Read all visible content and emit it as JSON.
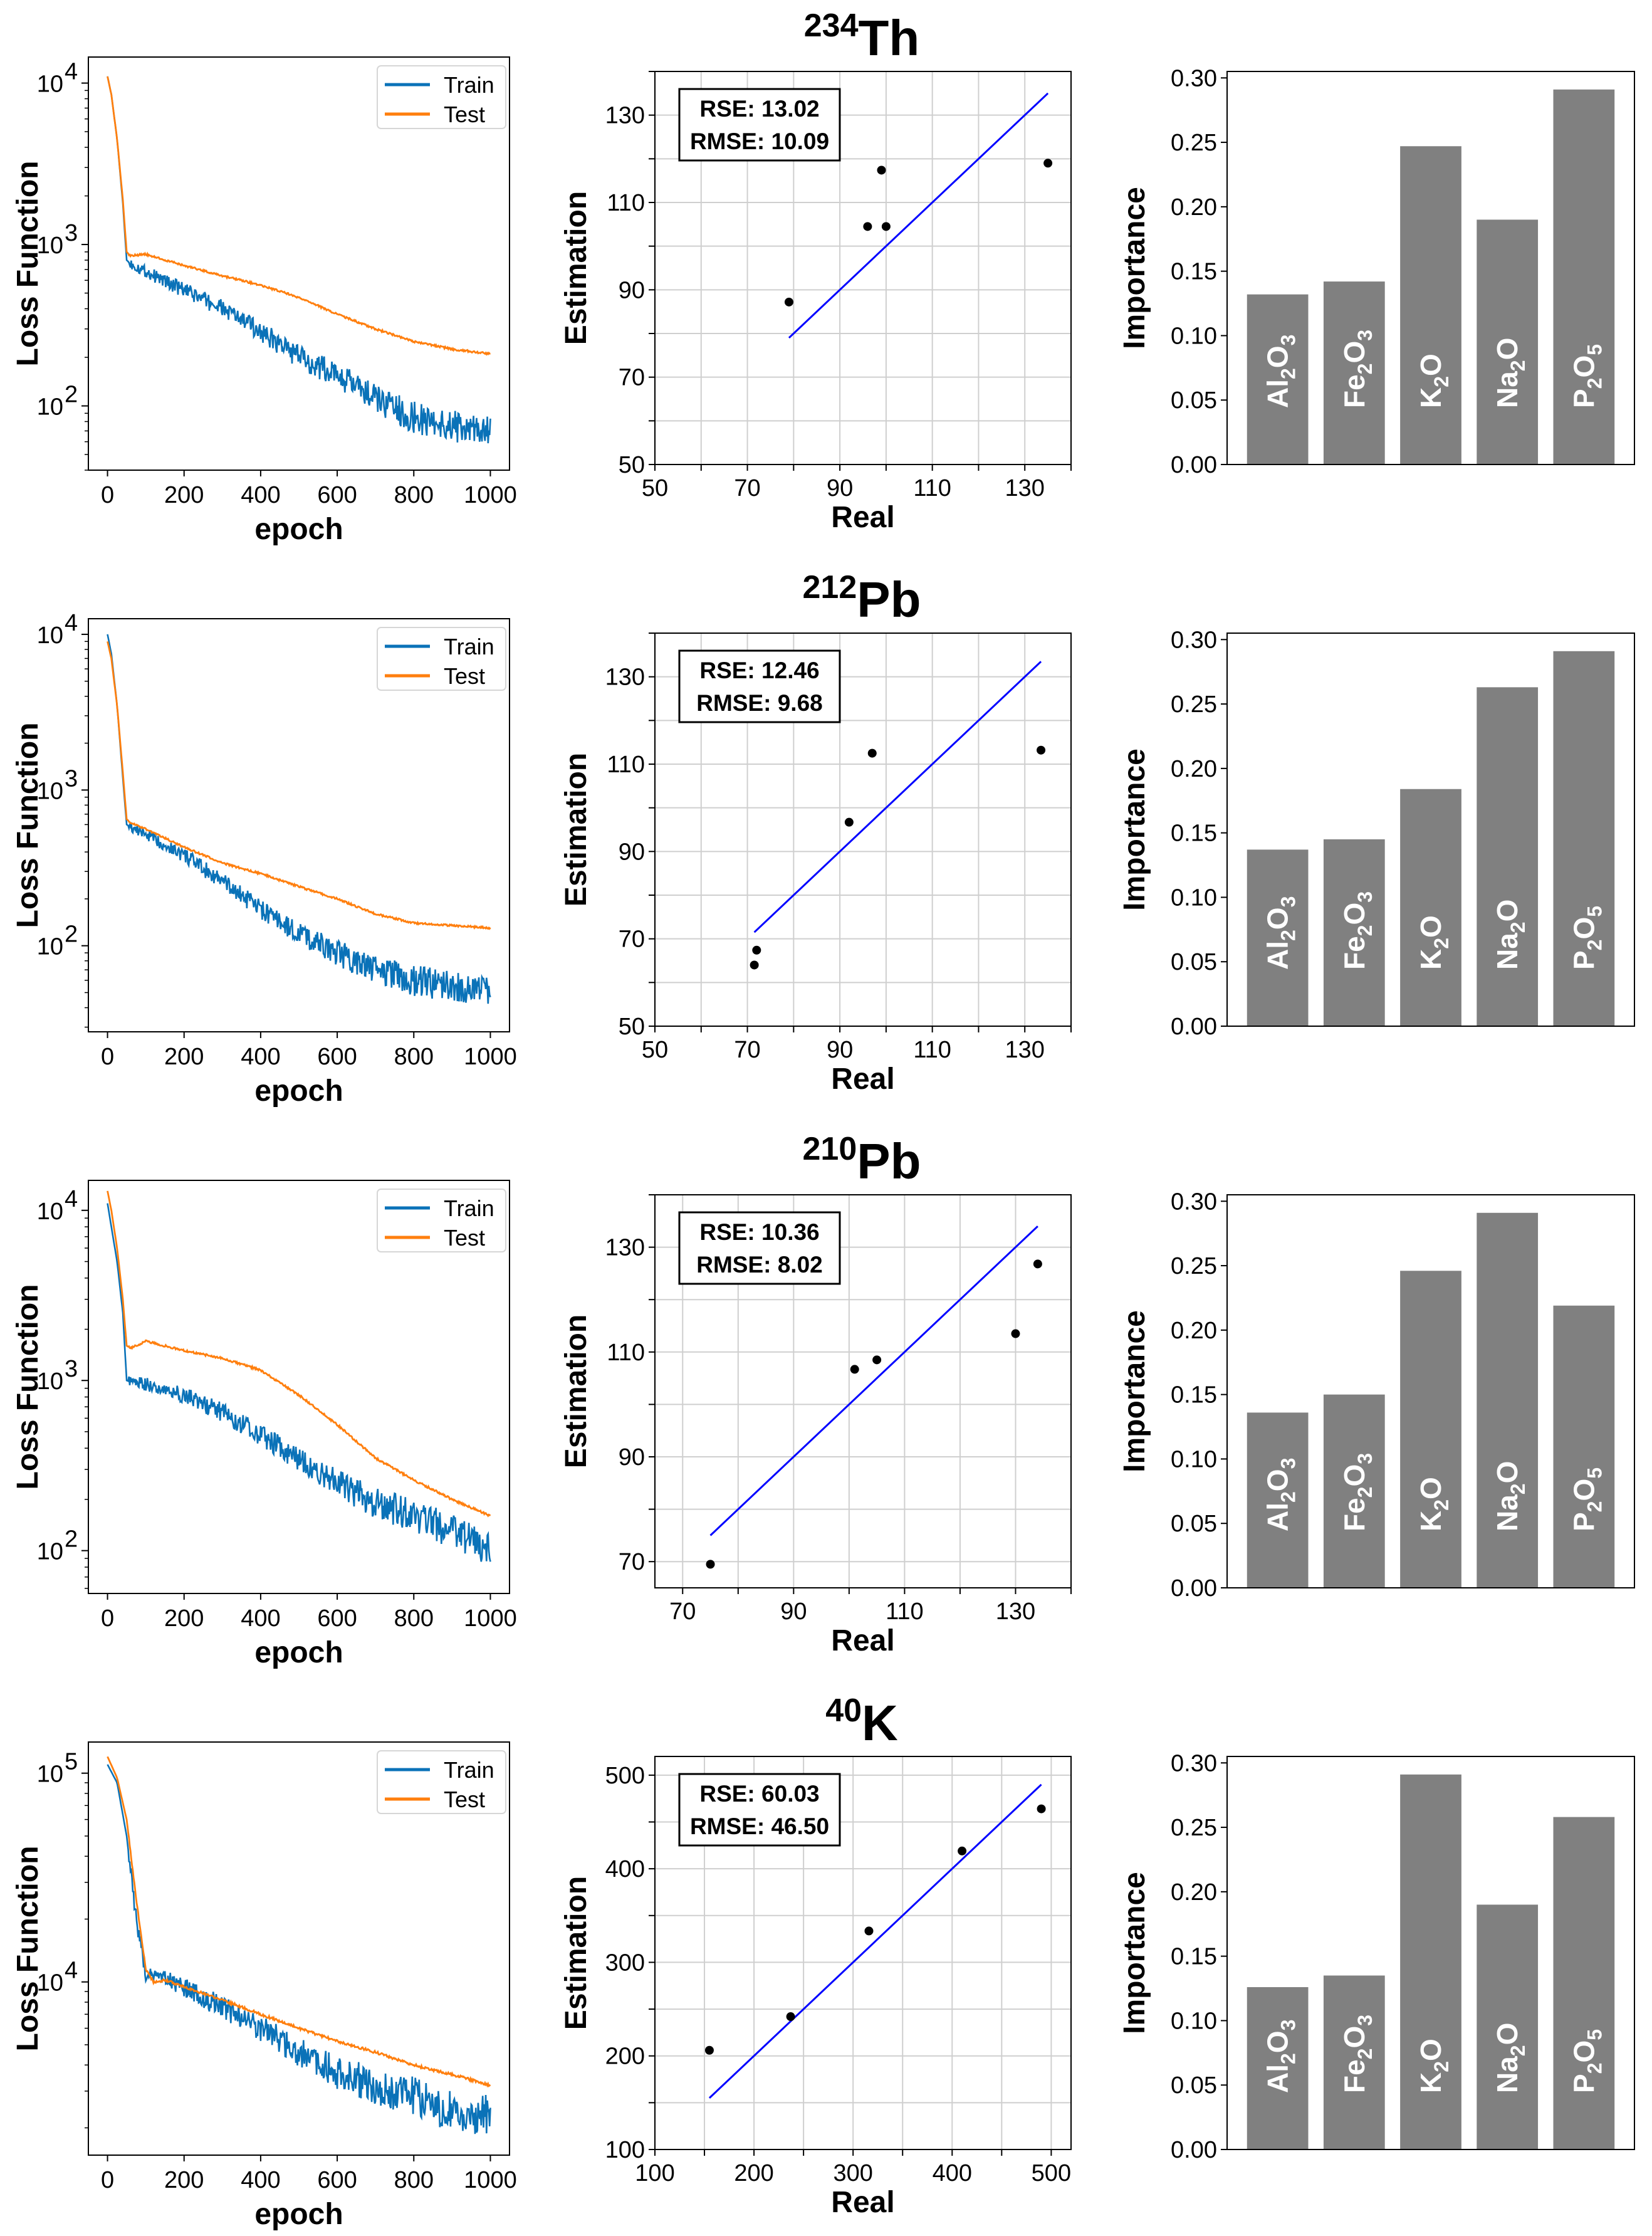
{
  "chart_data": {
    "rows": [
      {
        "title": {
          "mass": "234",
          "symbol": "Th"
        },
        "loss": {
          "type": "line",
          "xlabel": "epoch",
          "ylabel": "Loss Function",
          "yscale": "log",
          "xlim": [
            -50,
            1050
          ],
          "ylim": [
            40,
            14500
          ],
          "x_ticks": [
            0,
            200,
            400,
            600,
            800,
            1000
          ],
          "y_tick_base": "10",
          "y_tick_exponents": [
            2,
            3,
            4
          ],
          "legend": "top-right",
          "series": [
            {
              "name": "Train",
              "color": "#0a72b8",
              "x": [
                0,
                10,
                25,
                40,
                50,
                60,
                100,
                200,
                300,
                400,
                500,
                600,
                700,
                800,
                900,
                1000
              ],
              "y": [
                11000,
                8500,
                4500,
                1800,
                800,
                760,
                680,
                520,
                400,
                290,
                200,
                155,
                110,
                85,
                75,
                68
              ]
            },
            {
              "name": "Test",
              "color": "#ff7f0e",
              "x": [
                0,
                10,
                25,
                40,
                50,
                60,
                100,
                200,
                300,
                400,
                500,
                600,
                700,
                800,
                900,
                1000
              ],
              "y": [
                11000,
                8500,
                4500,
                1900,
                900,
                850,
                870,
                740,
                640,
                560,
                470,
                370,
                300,
                250,
                225,
                210
              ]
            }
          ]
        },
        "scatter": {
          "type": "scatter",
          "xlabel": "Real",
          "ylabel": "Estimation",
          "xlim": [
            50,
            140
          ],
          "ylim": [
            50,
            140
          ],
          "grid_step": 10,
          "x_ticks": [
            50,
            70,
            90,
            110,
            130
          ],
          "y_ticks": [
            50,
            70,
            90,
            110,
            130
          ],
          "metrics": [
            "RSE: 13.02",
            "RMSE: 10.09"
          ],
          "fit_line": {
            "x": [
              79,
              135
            ],
            "color": "#0000ff"
          },
          "points": [
            [
              79,
              87.2
            ],
            [
              96,
              104.5
            ],
            [
              100,
              104.5
            ],
            [
              99,
              117.4
            ],
            [
              135,
              119
            ]
          ]
        },
        "importance": {
          "type": "bar",
          "ylabel": "Importance",
          "ylim": [
            0,
            0.305
          ],
          "color": "#808080",
          "y_ticks": [
            "0.00",
            "0.05",
            "0.10",
            "0.15",
            "0.20",
            "0.25",
            "0.30"
          ],
          "categories": [
            "Al2O3",
            "Fe2O3",
            "K2O",
            "Na2O",
            "P2O5"
          ],
          "values": [
            0.132,
            0.142,
            0.247,
            0.19,
            0.291
          ]
        }
      },
      {
        "title": {
          "mass": "212",
          "symbol": "Pb"
        },
        "loss": {
          "type": "line",
          "xlabel": "epoch",
          "ylabel": "Loss Function",
          "yscale": "log",
          "xlim": [
            -50,
            1050
          ],
          "ylim": [
            28,
            12600
          ],
          "x_ticks": [
            0,
            200,
            400,
            600,
            800,
            1000
          ],
          "y_tick_base": "10",
          "y_tick_exponents": [
            2,
            3,
            4
          ],
          "legend": "top-right",
          "series": [
            {
              "name": "Train",
              "color": "#0a72b8",
              "x": [
                0,
                10,
                25,
                40,
                50,
                60,
                100,
                200,
                300,
                400,
                500,
                600,
                700,
                800,
                900,
                1000
              ],
              "y": [
                10000,
                7500,
                3500,
                1200,
                600,
                580,
                520,
                380,
                260,
                170,
                120,
                90,
                70,
                60,
                55,
                52
              ]
            },
            {
              "name": "Test",
              "color": "#ff7f0e",
              "x": [
                0,
                10,
                25,
                40,
                50,
                60,
                100,
                200,
                300,
                400,
                500,
                600,
                700,
                800,
                900,
                1000
              ],
              "y": [
                9000,
                7000,
                3500,
                1300,
                650,
                620,
                560,
                430,
                340,
                290,
                240,
                200,
                160,
                140,
                135,
                130
              ]
            }
          ]
        },
        "scatter": {
          "type": "scatter",
          "xlabel": "Real",
          "ylabel": "Estimation",
          "xlim": [
            50,
            140
          ],
          "ylim": [
            50,
            140
          ],
          "grid_step": 10,
          "x_ticks": [
            50,
            70,
            90,
            110,
            130
          ],
          "y_ticks": [
            50,
            70,
            90,
            110,
            130
          ],
          "metrics": [
            "RSE: 12.46",
            "RMSE: 9.68"
          ],
          "fit_line": {
            "x": [
              71.5,
              133.5
            ],
            "color": "#0000ff"
          },
          "points": [
            [
              71.5,
              64
            ],
            [
              72,
              67.4
            ],
            [
              92,
              96.7
            ],
            [
              97,
              112.5
            ],
            [
              133.5,
              113.2
            ]
          ]
        },
        "importance": {
          "type": "bar",
          "ylabel": "Importance",
          "ylim": [
            0,
            0.305
          ],
          "color": "#808080",
          "y_ticks": [
            "0.00",
            "0.05",
            "0.10",
            "0.15",
            "0.20",
            "0.25",
            "0.30"
          ],
          "categories": [
            "Al2O3",
            "Fe2O3",
            "K2O",
            "Na2O",
            "P2O5"
          ],
          "values": [
            0.137,
            0.145,
            0.184,
            0.263,
            0.291
          ]
        }
      },
      {
        "title": {
          "mass": "210",
          "symbol": "Pb"
        },
        "loss": {
          "type": "line",
          "xlabel": "epoch",
          "ylabel": "Loss Function",
          "yscale": "log",
          "xlim": [
            -50,
            1050
          ],
          "ylim": [
            56,
            15000
          ],
          "x_ticks": [
            0,
            200,
            400,
            600,
            800,
            1000
          ],
          "y_tick_base": "10",
          "y_tick_exponents": [
            2,
            3,
            4
          ],
          "legend": "top-right",
          "series": [
            {
              "name": "Train",
              "color": "#0a72b8",
              "x": [
                0,
                10,
                25,
                40,
                50,
                60,
                100,
                200,
                300,
                400,
                500,
                600,
                700,
                800,
                900,
                1000
              ],
              "y": [
                11000,
                8000,
                5000,
                2500,
                1000,
                980,
                950,
                820,
                650,
                480,
                340,
                250,
                190,
                160,
                130,
                100
              ]
            },
            {
              "name": "Test",
              "color": "#ff7f0e",
              "x": [
                0,
                10,
                25,
                40,
                50,
                60,
                100,
                200,
                300,
                400,
                500,
                600,
                700,
                800,
                900,
                1000
              ],
              "y": [
                13000,
                10000,
                6000,
                3000,
                1600,
                1550,
                1700,
                1500,
                1350,
                1150,
                820,
                550,
                350,
                260,
                200,
                160
              ]
            }
          ]
        },
        "scatter": {
          "type": "scatter",
          "xlabel": "Real",
          "ylabel": "Estimation",
          "xlim": [
            65,
            140
          ],
          "ylim": [
            65,
            140
          ],
          "grid_step": 10,
          "x_ticks": [
            70,
            90,
            110,
            130
          ],
          "y_ticks": [
            70,
            90,
            110,
            130
          ],
          "metrics": [
            "RSE: 10.36",
            "RMSE: 8.02"
          ],
          "fit_line": {
            "x": [
              75,
              134
            ],
            "color": "#0000ff"
          },
          "points": [
            [
              75,
              69.5
            ],
            [
              101,
              106.7
            ],
            [
              105,
              108.5
            ],
            [
              130,
              113.5
            ],
            [
              134,
              126.8
            ]
          ]
        },
        "importance": {
          "type": "bar",
          "ylabel": "Importance",
          "ylim": [
            0,
            0.305
          ],
          "color": "#808080",
          "y_ticks": [
            "0.00",
            "0.05",
            "0.10",
            "0.15",
            "0.20",
            "0.25",
            "0.30"
          ],
          "categories": [
            "Al2O3",
            "Fe2O3",
            "K2O",
            "Na2O",
            "P2O5"
          ],
          "values": [
            0.136,
            0.15,
            0.246,
            0.291,
            0.219
          ]
        }
      },
      {
        "title": {
          "mass": "40",
          "symbol": "K"
        },
        "loss": {
          "type": "line",
          "xlabel": "epoch",
          "ylabel": "Loss Function",
          "yscale": "log",
          "xlim": [
            -50,
            1050
          ],
          "ylim": [
            1480,
            141000
          ],
          "x_ticks": [
            0,
            200,
            400,
            600,
            800,
            1000
          ],
          "y_tick_base": "10",
          "y_tick_exponents": [
            4,
            5
          ],
          "legend": "top-right",
          "series": [
            {
              "name": "Train",
              "color": "#0a72b8",
              "x": [
                0,
                25,
                50,
                75,
                100,
                120,
                150,
                200,
                300,
                400,
                500,
                600,
                700,
                800,
                900,
                1000
              ],
              "y": [
                110000,
                90000,
                50000,
                20000,
                11000,
                10500,
                10200,
                9500,
                7500,
                6000,
                4600,
                3700,
                3200,
                2800,
                2400,
                2300
              ]
            },
            {
              "name": "Test",
              "color": "#ff7f0e",
              "x": [
                0,
                25,
                50,
                75,
                100,
                120,
                150,
                200,
                300,
                400,
                500,
                600,
                700,
                800,
                900,
                1000
              ],
              "y": [
                120000,
                95000,
                60000,
                25000,
                11500,
                10000,
                10200,
                9500,
                8200,
                7000,
                6000,
                5200,
                4600,
                4000,
                3600,
                3200
              ]
            }
          ]
        },
        "scatter": {
          "type": "scatter",
          "xlabel": "Real",
          "ylabel": "Estimation",
          "xlim": [
            100,
            520
          ],
          "ylim": [
            100,
            520
          ],
          "grid_step": 50,
          "x_ticks": [
            100,
            200,
            300,
            400,
            500
          ],
          "y_ticks": [
            100,
            200,
            300,
            400,
            500
          ],
          "metrics": [
            "RSE: 60.03",
            "RMSE: 46.50"
          ],
          "fit_line": {
            "x": [
              155,
              490
            ],
            "color": "#0000ff"
          },
          "points": [
            [
              155,
              206
            ],
            [
              237,
              242
            ],
            [
              316,
              333.5
            ],
            [
              410,
              419
            ],
            [
              490,
              464
            ]
          ]
        },
        "importance": {
          "type": "bar",
          "ylabel": "Importance",
          "ylim": [
            0,
            0.305
          ],
          "color": "#808080",
          "y_ticks": [
            "0.00",
            "0.05",
            "0.10",
            "0.15",
            "0.20",
            "0.25",
            "0.30"
          ],
          "categories": [
            "Al2O3",
            "Fe2O3",
            "K2O",
            "Na2O",
            "P2O5"
          ],
          "values": [
            0.126,
            0.135,
            0.291,
            0.19,
            0.258
          ]
        }
      }
    ]
  }
}
